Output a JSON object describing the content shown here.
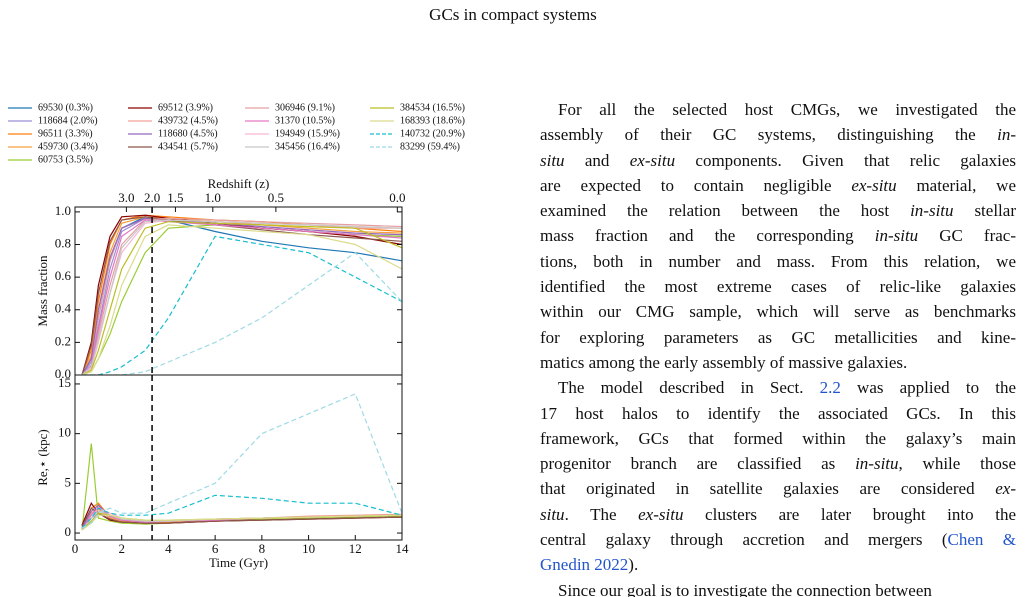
{
  "header": {
    "title": "GCs in compact systems"
  },
  "chart_data": [
    {
      "type": "line",
      "ylabel": "Mass fraction",
      "x2label": "Redshift (z)",
      "xlim": [
        0,
        14
      ],
      "ylim": [
        0,
        1.03
      ],
      "yticks": [
        {
          "value": 0,
          "label": "0.0"
        },
        0.2,
        0.4,
        0.6,
        0.8,
        {
          "value": 1,
          "label": "1.0"
        }
      ],
      "x2lim": [
        0,
        14
      ],
      "x2ticks": [
        {
          "value": 2.2,
          "label": "3.0"
        },
        {
          "value": 3.3,
          "label": "2.0"
        },
        {
          "value": 4.3,
          "label": "1.5"
        },
        {
          "value": 5.9,
          "label": "1.0"
        },
        {
          "value": 8.6,
          "label": "0.5"
        },
        {
          "value": 13.8,
          "label": "0.0"
        }
      ],
      "vline": 3.3,
      "x": [
        0.3,
        0.7,
        1,
        1.5,
        2,
        3,
        4,
        6,
        8,
        10,
        12,
        14
      ],
      "series": [
        {
          "name": "69530 (0.3%)",
          "color": "#1f77b4",
          "values": [
            0,
            0.1,
            0.35,
            0.7,
            0.9,
            0.97,
            0.95,
            0.88,
            0.82,
            0.78,
            0.75,
            0.7
          ]
        },
        {
          "name": "118684 (2.0%)",
          "color": "#9b8fd6",
          "values": [
            0,
            0.08,
            0.3,
            0.65,
            0.88,
            0.96,
            0.95,
            0.93,
            0.9,
            0.88,
            0.86,
            0.85
          ]
        },
        {
          "name": "96511 (3.3%)",
          "color": "#ff7f0e",
          "values": [
            0,
            0.15,
            0.45,
            0.8,
            0.95,
            0.98,
            0.97,
            0.95,
            0.94,
            0.92,
            0.9,
            0.88
          ]
        },
        {
          "name": "459730 (3.4%)",
          "color": "#f5a03c",
          "values": [
            0,
            0.12,
            0.4,
            0.75,
            0.93,
            0.97,
            0.96,
            0.94,
            0.92,
            0.9,
            0.88,
            0.87
          ]
        },
        {
          "name": "60753 (3.5%)",
          "color": "#9acd32",
          "values": [
            0,
            0.02,
            0.1,
            0.25,
            0.45,
            0.75,
            0.9,
            0.92,
            0.9,
            0.88,
            0.86,
            0.85
          ]
        },
        {
          "name": "69512 (3.9%)",
          "color": "#8b0000",
          "values": [
            0,
            0.2,
            0.55,
            0.85,
            0.97,
            0.98,
            0.96,
            0.93,
            0.9,
            0.88,
            0.85,
            0.8
          ]
        },
        {
          "name": "439732 (4.5%)",
          "color": "#f4a09a",
          "values": [
            0,
            0.1,
            0.35,
            0.7,
            0.9,
            0.96,
            0.95,
            0.94,
            0.93,
            0.92,
            0.9,
            0.9
          ]
        },
        {
          "name": "118680 (4.5%)",
          "color": "#9467bd",
          "values": [
            0,
            0.1,
            0.4,
            0.72,
            0.9,
            0.96,
            0.95,
            0.93,
            0.91,
            0.89,
            0.87,
            0.86
          ]
        },
        {
          "name": "434541 (5.7%)",
          "color": "#8c564b",
          "values": [
            0,
            0.18,
            0.5,
            0.82,
            0.95,
            0.97,
            0.95,
            0.92,
            0.89,
            0.86,
            0.84,
            0.82
          ]
        },
        {
          "name": "306946 (9.1%)",
          "color": "#e4a0a0",
          "values": [
            0,
            0.05,
            0.25,
            0.55,
            0.8,
            0.95,
            0.96,
            0.95,
            0.94,
            0.93,
            0.92,
            0.91
          ]
        },
        {
          "name": "31370 (10.5%)",
          "color": "#e377c2",
          "values": [
            0,
            0.06,
            0.28,
            0.6,
            0.85,
            0.95,
            0.94,
            0.92,
            0.9,
            0.88,
            0.86,
            0.84
          ]
        },
        {
          "name": "194949 (15.9%)",
          "color": "#f7b6d2",
          "values": [
            0,
            0.04,
            0.2,
            0.5,
            0.75,
            0.93,
            0.95,
            0.94,
            0.93,
            0.92,
            0.91,
            0.9
          ]
        },
        {
          "name": "345456 (16.4%)",
          "color": "#c7c7c7",
          "values": [
            0,
            0.05,
            0.22,
            0.5,
            0.78,
            0.94,
            0.95,
            0.94,
            0.93,
            0.92,
            0.91,
            0.9
          ]
        },
        {
          "name": "384534 (16.5%)",
          "color": "#bcbd22",
          "values": [
            0,
            0.03,
            0.15,
            0.4,
            0.65,
            0.9,
            0.94,
            0.93,
            0.92,
            0.91,
            0.9,
            0.78
          ]
        },
        {
          "name": "168393 (18.6%)",
          "color": "#dbdb8d",
          "values": [
            0,
            0.02,
            0.1,
            0.3,
            0.55,
            0.85,
            0.92,
            0.9,
            0.88,
            0.86,
            0.8,
            0.65
          ]
        },
        {
          "name": "140732 (20.9%)",
          "color": "#17becf",
          "dashed": true,
          "values": [
            0,
            0,
            0,
            0.02,
            0.05,
            0.15,
            0.35,
            0.85,
            0.8,
            0.75,
            0.6,
            0.45
          ]
        },
        {
          "name": "83299 (59.4%)",
          "color": "#9edae5",
          "dashed": true,
          "values": [
            0,
            0,
            0,
            0,
            0,
            0.02,
            0.08,
            0.2,
            0.35,
            0.55,
            0.75,
            0.45
          ]
        }
      ]
    },
    {
      "type": "line",
      "ylabel": "Re,⋆ (kpc)",
      "xlabel": "Time (Gyr)",
      "xlim": [
        0,
        14
      ],
      "ylim": [
        -0.7,
        15.9
      ],
      "xticks": [
        0,
        2,
        4,
        6,
        8,
        10,
        12,
        14
      ],
      "yticks": [
        0,
        5,
        10,
        15
      ],
      "vline": 3.3,
      "x": [
        0.3,
        0.7,
        1,
        1.5,
        2,
        3,
        4,
        6,
        8,
        10,
        12,
        14
      ],
      "series": [
        {
          "color": "#1f77b4",
          "values": [
            0.5,
            2,
            2.5,
            1.5,
            1.2,
            1,
            1.1,
            1.3,
            1.5,
            1.6,
            1.7,
            1.8
          ]
        },
        {
          "color": "#9b8fd6",
          "values": [
            0.4,
            1.5,
            2,
            1.4,
            1.1,
            1,
            1.1,
            1.3,
            1.4,
            1.5,
            1.6,
            1.7
          ]
        },
        {
          "color": "#ff7f0e",
          "values": [
            0.6,
            2.5,
            3,
            1.6,
            1.2,
            1,
            1.1,
            1.2,
            1.4,
            1.5,
            1.6,
            1.7
          ]
        },
        {
          "color": "#f5a03c",
          "values": [
            0.5,
            2,
            2.4,
            1.5,
            1.2,
            1.1,
            1.2,
            1.4,
            1.5,
            1.6,
            1.7,
            1.8
          ]
        },
        {
          "color": "#9acd32",
          "values": [
            0.3,
            9,
            1.5,
            1.2,
            1,
            0.9,
            1,
            1.2,
            1.4,
            1.5,
            1.6,
            1.7
          ]
        },
        {
          "color": "#8b0000",
          "values": [
            0.8,
            3,
            2,
            1.3,
            1.1,
            1,
            1,
            1.2,
            1.3,
            1.4,
            1.5,
            1.6
          ]
        },
        {
          "color": "#f4a09a",
          "values": [
            0.5,
            2,
            2.5,
            1.6,
            1.3,
            1.1,
            1.2,
            1.4,
            1.5,
            1.7,
            1.8,
            1.9
          ]
        },
        {
          "color": "#9467bd",
          "values": [
            0.5,
            2.2,
            2.8,
            1.7,
            1.3,
            1.1,
            1.2,
            1.3,
            1.5,
            1.6,
            1.7,
            1.8
          ]
        },
        {
          "color": "#8c564b",
          "values": [
            0.7,
            2.5,
            2,
            1.4,
            1.1,
            1,
            1,
            1.2,
            1.3,
            1.4,
            1.5,
            1.6
          ]
        },
        {
          "color": "#e4a0a0",
          "values": [
            0.4,
            1.5,
            2.5,
            1.8,
            1.4,
            1.2,
            1.2,
            1.4,
            1.5,
            1.6,
            1.7,
            1.8
          ]
        },
        {
          "color": "#e377c2",
          "values": [
            0.4,
            1.8,
            2.6,
            1.7,
            1.3,
            1.1,
            1.2,
            1.3,
            1.5,
            1.6,
            1.7,
            1.8
          ]
        },
        {
          "color": "#f7b6d2",
          "values": [
            0.3,
            1.5,
            2.5,
            2,
            1.5,
            1.2,
            1.2,
            1.4,
            1.5,
            1.6,
            1.7,
            1.8
          ]
        },
        {
          "color": "#c7c7c7",
          "values": [
            0.3,
            1.5,
            2.2,
            1.8,
            1.4,
            1.2,
            1.2,
            1.4,
            1.5,
            1.6,
            1.7,
            1.8
          ]
        },
        {
          "color": "#bcbd22",
          "values": [
            0.3,
            1.2,
            2,
            1.8,
            1.5,
            1.3,
            1.3,
            1.4,
            1.5,
            1.6,
            1.7,
            1.8
          ]
        },
        {
          "color": "#dbdb8d",
          "values": [
            0.3,
            1,
            1.8,
            1.8,
            1.5,
            1.3,
            1.3,
            1.4,
            1.5,
            1.6,
            1.7,
            1.8
          ]
        },
        {
          "color": "#17becf",
          "dashed": true,
          "values": [
            0.5,
            1.5,
            2.5,
            2,
            1.8,
            1.8,
            2,
            3.8,
            3.5,
            3,
            3,
            1.8
          ]
        },
        {
          "color": "#9edae5",
          "dashed": true,
          "values": [
            0.5,
            1,
            2,
            2.5,
            2,
            2,
            3,
            5,
            10,
            12,
            14,
            2
          ]
        }
      ]
    }
  ],
  "paragraphs": [
    [
      [
        "For all the selected host CMGs, we investigated the"
      ],
      [
        "assembly of their GC systems, distinguishing the ",
        {
          "i": "in-"
        }
      ],
      [
        {
          "i": "situ"
        },
        " and ",
        {
          "i": "ex-situ"
        },
        " components. Given that relic galaxies"
      ],
      [
        "are expected to contain negligible ",
        {
          "i": "ex-situ"
        },
        " material, we"
      ],
      [
        "examined the relation between the host ",
        {
          "i": "in-situ"
        },
        " stellar"
      ],
      [
        "mass fraction and the corresponding ",
        {
          "i": "in-situ"
        },
        " GC frac-"
      ],
      [
        "tions, both in number and mass. From this relation, we"
      ],
      [
        "identified the most extreme cases of relic-like galaxies"
      ],
      [
        "within our CMG sample, which will serve as benchmarks"
      ],
      [
        "for exploring parameters as GC metallicities and kine-"
      ],
      [
        "matics among the early assembly of massive galaxies."
      ]
    ],
    [
      [
        "The model described in Sect. ",
        {
          "link": "2.2"
        },
        " was applied to the"
      ],
      [
        "17 host halos to identify the associated GCs. In this"
      ],
      [
        "framework, GCs that formed within the galaxy’s main"
      ],
      [
        "progenitor branch are classified as ",
        {
          "i": "in-situ"
        },
        ", while those"
      ],
      [
        "that originated in satellite galaxies are considered ",
        {
          "i": "ex-"
        }
      ],
      [
        {
          "i": "situ"
        },
        ". The ",
        {
          "i": "ex-situ"
        },
        " clusters are later brought into the"
      ],
      [
        "central galaxy through accretion and mergers (",
        {
          "link": "Chen &"
        }
      ],
      [
        {
          "link": "Gnedin 2022"
        },
        ")."
      ]
    ],
    [
      [
        "Since our goal is to investigate the connection between"
      ]
    ]
  ]
}
